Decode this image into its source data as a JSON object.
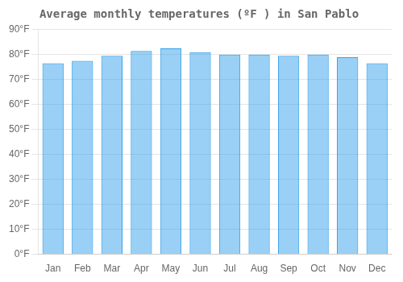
{
  "chart_data": {
    "type": "bar",
    "title": "Average monthly temperatures (ºF ) in San Pablo",
    "categories": [
      "Jan",
      "Feb",
      "Mar",
      "Apr",
      "May",
      "Jun",
      "Jul",
      "Aug",
      "Sep",
      "Oct",
      "Nov",
      "Dec"
    ],
    "values": [
      76.5,
      77.5,
      79.5,
      81.5,
      82.5,
      81.0,
      80.0,
      80.0,
      79.5,
      80.0,
      79.0,
      76.5
    ],
    "ylim": [
      0,
      90
    ],
    "yticks": [
      {
        "value": 0,
        "label": "0°F"
      },
      {
        "value": 10,
        "label": "10°F"
      },
      {
        "value": 20,
        "label": "20°F"
      },
      {
        "value": 30,
        "label": "30°F"
      },
      {
        "value": 40,
        "label": "40°F"
      },
      {
        "value": 50,
        "label": "50°F"
      },
      {
        "value": 60,
        "label": "60°F"
      },
      {
        "value": 70,
        "label": "70°F"
      },
      {
        "value": 80,
        "label": "80°F"
      },
      {
        "value": 90,
        "label": "90°F"
      }
    ],
    "grid": true
  }
}
